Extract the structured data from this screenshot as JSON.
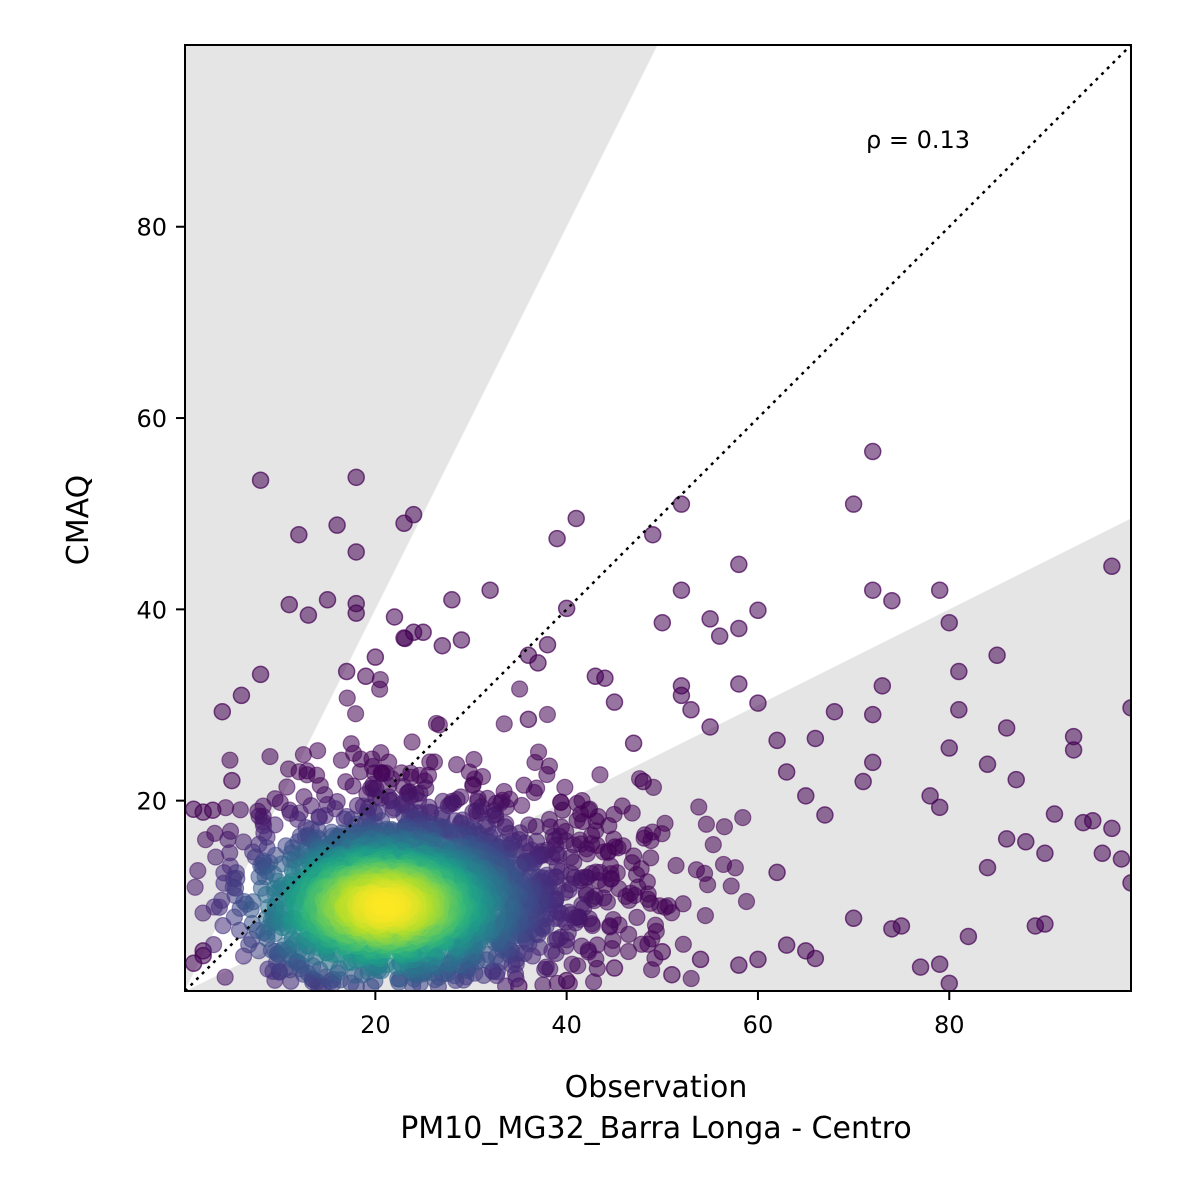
{
  "chart_data": {
    "type": "scatter",
    "title": "",
    "xlabel": "Observation",
    "xlabel_sub": "PM10_MG32_Barra Longa - Centro",
    "ylabel": "CMAQ",
    "xlim": [
      0.1,
      99
    ],
    "ylim": [
      0.1,
      99
    ],
    "xticks": [
      20,
      40,
      60,
      80
    ],
    "yticks": [
      20,
      40,
      60,
      80
    ],
    "grid": false,
    "colormap": "viridis",
    "annotation": "ρ = 0.13",
    "identity_line": {
      "style": "dotted",
      "color": "#000000"
    },
    "shaded_regions": [
      {
        "description": "above factor-of-2 line",
        "slope": 2,
        "color": "#e5e5e5"
      },
      {
        "description": "below factor-of-0.5 line",
        "slope": 0.5,
        "color": "#e5e5e5"
      }
    ],
    "density_core": {
      "x": 21,
      "y": 9,
      "note": "highest point density (yellow)"
    },
    "outlier_points": [
      [
        8,
        53.5
      ],
      [
        18,
        53.8
      ],
      [
        18,
        46
      ],
      [
        12,
        47.8
      ],
      [
        16,
        48.8
      ],
      [
        23,
        49
      ],
      [
        24,
        49.9
      ],
      [
        11,
        40.5
      ],
      [
        15,
        41
      ],
      [
        18,
        40.6
      ],
      [
        18,
        39.6
      ],
      [
        13,
        39.4
      ],
      [
        28,
        41
      ],
      [
        32,
        42
      ],
      [
        22,
        39.2
      ],
      [
        39,
        47.4
      ],
      [
        41,
        49.5
      ],
      [
        40,
        40.1
      ],
      [
        49,
        47.8
      ],
      [
        52,
        51
      ],
      [
        52,
        42
      ],
      [
        50,
        38.6
      ],
      [
        55,
        39
      ],
      [
        58,
        44.7
      ],
      [
        60,
        39.9
      ],
      [
        56,
        37.2
      ],
      [
        58,
        38
      ],
      [
        72,
        56.5
      ],
      [
        70,
        51
      ],
      [
        72,
        42
      ],
      [
        74,
        40.9
      ],
      [
        79,
        42
      ],
      [
        80,
        38.6
      ],
      [
        97,
        44.5
      ],
      [
        99,
        29.7
      ],
      [
        72,
        29
      ],
      [
        73,
        32
      ],
      [
        68,
        29.3
      ],
      [
        81,
        33.5
      ],
      [
        85,
        35.2
      ],
      [
        81,
        29.5
      ],
      [
        80,
        25.5
      ],
      [
        86,
        27.6
      ],
      [
        84,
        23.8
      ],
      [
        87,
        22.2
      ],
      [
        93,
        26.7
      ],
      [
        93,
        25.3
      ],
      [
        78,
        20.5
      ],
      [
        79,
        19.3
      ],
      [
        89,
        6.9
      ],
      [
        90,
        7.1
      ],
      [
        82,
        5.8
      ],
      [
        79,
        2.9
      ],
      [
        77,
        2.6
      ],
      [
        80,
        0.9
      ],
      [
        74,
        6.6
      ],
      [
        95,
        17.9
      ],
      [
        97,
        17.1
      ],
      [
        99,
        11.4
      ],
      [
        96,
        14.5
      ],
      [
        91,
        18.6
      ],
      [
        94,
        17.7
      ],
      [
        98,
        13.9
      ],
      [
        88,
        15.7
      ],
      [
        90,
        14.5
      ],
      [
        84,
        13
      ],
      [
        86,
        16
      ],
      [
        62,
        26.3
      ],
      [
        66,
        26.5
      ],
      [
        65,
        20.5
      ],
      [
        58,
        32.2
      ],
      [
        60,
        30.2
      ],
      [
        52,
        32
      ],
      [
        52,
        31
      ],
      [
        45,
        30.3
      ],
      [
        43,
        33
      ],
      [
        44,
        32.8
      ],
      [
        36,
        35.2
      ],
      [
        37,
        34.4
      ],
      [
        38,
        36.3
      ],
      [
        36,
        28.5
      ],
      [
        27,
        36.2
      ],
      [
        29,
        36.8
      ],
      [
        24,
        37.6
      ],
      [
        25,
        37.6
      ],
      [
        23,
        37
      ],
      [
        20,
        35
      ],
      [
        19,
        33
      ],
      [
        17,
        33.5
      ],
      [
        6,
        31
      ],
      [
        4,
        29.3
      ],
      [
        8,
        33.2
      ],
      [
        3,
        19
      ],
      [
        2,
        18.8
      ],
      [
        1,
        19.1
      ],
      [
        2,
        3.8
      ],
      [
        1,
        3
      ],
      [
        2,
        4.3
      ],
      [
        5,
        22.1
      ],
      [
        47,
        26
      ],
      [
        53,
        29.5
      ],
      [
        48,
        22
      ],
      [
        55,
        27.7
      ],
      [
        63,
        23
      ],
      [
        67,
        18.5
      ],
      [
        72,
        24
      ],
      [
        71,
        22
      ],
      [
        62,
        12.5
      ],
      [
        65,
        4.3
      ],
      [
        70,
        7.7
      ],
      [
        75,
        6.9
      ],
      [
        63,
        4.9
      ],
      [
        66,
        3.5
      ],
      [
        60,
        3.4
      ],
      [
        58,
        2.8
      ],
      [
        54,
        3.4
      ],
      [
        51,
        1.8
      ],
      [
        50,
        4.2
      ],
      [
        45,
        2.5
      ],
      [
        40,
        1.2
      ],
      [
        35,
        0.6
      ]
    ]
  }
}
